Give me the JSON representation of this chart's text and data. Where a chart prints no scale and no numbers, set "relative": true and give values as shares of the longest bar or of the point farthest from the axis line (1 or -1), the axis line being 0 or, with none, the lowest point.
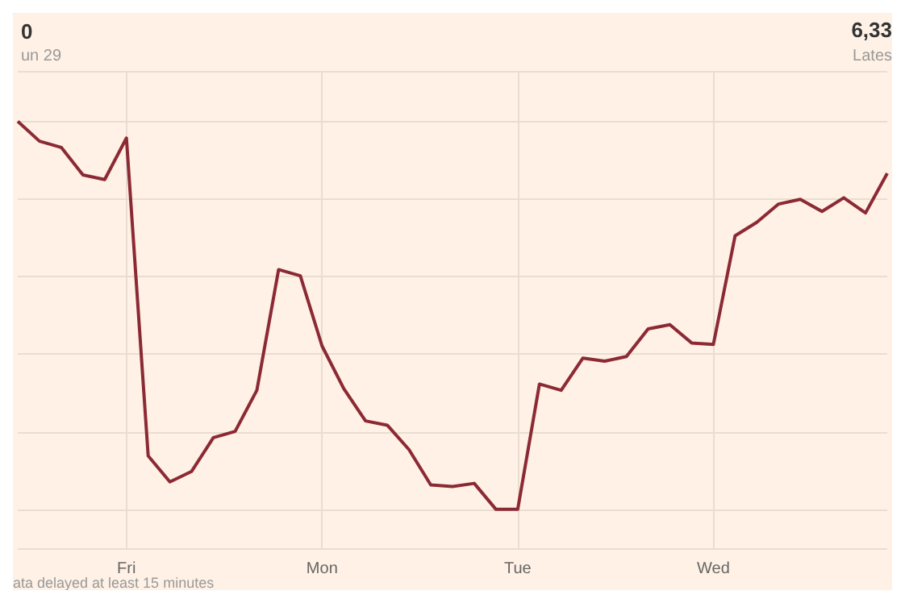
{
  "chart_data": {
    "type": "line",
    "title": "0",
    "subtitle": "un 29",
    "relative": true,
    "grid": true,
    "marker": "none",
    "line_style": "solid",
    "annotations": [
      "6,33",
      "Lates",
      "ata delayed at least 15 minutes"
    ],
    "categories": [
      null,
      null,
      null,
      null,
      null,
      "Fri",
      null,
      null,
      null,
      null,
      null,
      null,
      null,
      null,
      "Mon",
      null,
      null,
      null,
      null,
      null,
      null,
      null,
      null,
      "Tue",
      null,
      null,
      null,
      null,
      null,
      null,
      null,
      null,
      "Wed",
      null,
      null,
      null,
      null,
      null,
      null,
      null,
      null
    ],
    "series": [
      {
        "color": "#8b2a35",
        "values": [
          1,
          0.949,
          0.933,
          0.862,
          0.85,
          0.957,
          0.138,
          0.071,
          0.098,
          0.185,
          0.201,
          0.307,
          0.618,
          0.602,
          0.421,
          0.311,
          0.228,
          0.217,
          0.154,
          0.063,
          0.059,
          0.067,
          0,
          0,
          0.323,
          0.307,
          0.39,
          0.382,
          0.394,
          0.465,
          0.476,
          0.429,
          0.425,
          0.705,
          0.74,
          0.787,
          0.799,
          0.768,
          0.803,
          0.764,
          0.866
        ]
      }
    ]
  }
}
